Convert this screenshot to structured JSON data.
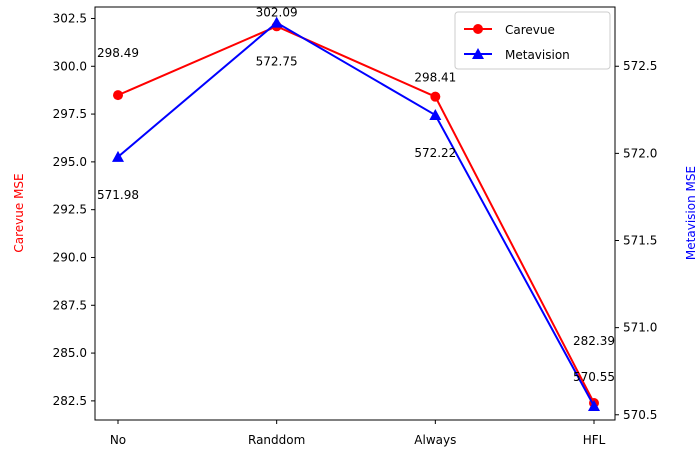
{
  "chart_data": {
    "type": "line",
    "categories": [
      "No",
      "Randdom",
      "Always",
      "HFL"
    ],
    "series": [
      {
        "name": "Carevue",
        "axis": "left",
        "color": "#ff0000",
        "marker": "circle",
        "values": [
          298.49,
          302.09,
          298.41,
          282.39
        ],
        "labels": [
          "298.49",
          "302.09",
          "298.41",
          "282.39"
        ]
      },
      {
        "name": "Metavision",
        "axis": "right",
        "color": "#0000ff",
        "marker": "triangle",
        "values": [
          571.98,
          572.75,
          572.22,
          570.55
        ],
        "labels": [
          "571.98",
          "572.75",
          "572.22",
          "570.55"
        ]
      }
    ],
    "y_left": {
      "label": "Carevue MSE",
      "label_color": "#ff0000",
      "ticks": [
        "282.5",
        "285.0",
        "287.5",
        "290.0",
        "292.5",
        "295.0",
        "297.5",
        "300.0",
        "302.5"
      ],
      "ylim": [
        281.5,
        303.1
      ]
    },
    "y_right": {
      "label": "Metavision MSE",
      "label_color": "#0000ff",
      "ticks": [
        "570.5",
        "571.0",
        "571.5",
        "572.0",
        "572.5"
      ],
      "ylim": [
        570.47,
        572.84
      ]
    },
    "legend": "top-right",
    "grid": false
  }
}
